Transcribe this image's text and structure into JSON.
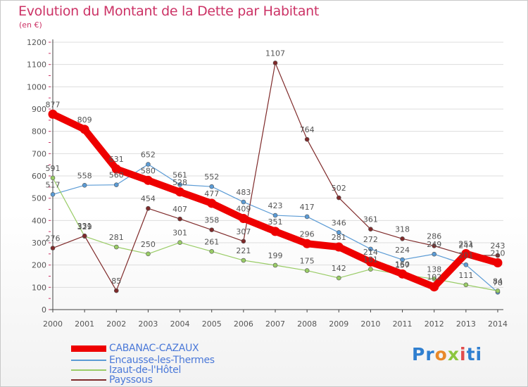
{
  "title": "Evolution du Montant de la Dette par Habitant",
  "subtitle": "(en €)",
  "logo": {
    "text": "Proxiti"
  },
  "colors": {
    "title": "#cc3366",
    "grid": "#dddddd",
    "axis": "#444444",
    "label": "#555555",
    "legend_text": "#4a78d8"
  },
  "chart_data": {
    "type": "line",
    "title": "Evolution du Montant de la Dette par Habitant",
    "subtitle": "(en €)",
    "x": [
      "2000",
      "2001",
      "2002",
      "2003",
      "2004",
      "2005",
      "2006",
      "2007",
      "2008",
      "2009",
      "2010",
      "2011",
      "2012",
      "2013",
      "2014"
    ],
    "ylim": [
      0,
      1200
    ],
    "yticks": [
      0,
      100,
      200,
      300,
      400,
      500,
      600,
      700,
      800,
      900,
      1000,
      1100,
      1200
    ],
    "grid": "horizontal",
    "legend_position": "bottom-left",
    "series": [
      {
        "name": "CABANAC-CAZAUX",
        "color": "#ee0000",
        "values": [
          877,
          809,
          631,
          580,
          528,
          477,
          409,
          351,
          296,
          281,
          214,
          160,
          102,
          251,
          210
        ],
        "labels": [
          "877",
          "809",
          "631",
          "580",
          "528",
          "477",
          "409",
          "351",
          "296",
          "281",
          "214",
          "160",
          "102",
          "251",
          "210"
        ]
      },
      {
        "name": "Encausse-les-Thermes",
        "color": "#5b9bd5",
        "values": [
          517,
          558,
          560,
          652,
          561,
          552,
          483,
          423,
          417,
          346,
          272,
          224,
          249,
          201,
          78
        ],
        "labels": [
          "517",
          "558",
          "560",
          "652",
          "561",
          "552",
          "483",
          "423",
          "417",
          "346",
          "272",
          "224",
          "249",
          "201",
          "78"
        ]
      },
      {
        "name": "Izaut-de-l'Hôtel",
        "color": "#99cc66",
        "values": [
          591,
          329,
          281,
          250,
          301,
          261,
          221,
          199,
          175,
          142,
          181,
          157,
          138,
          111,
          84
        ],
        "labels": [
          "591",
          "329",
          "281",
          "250",
          "301",
          "261",
          "221",
          "199",
          "175",
          "142",
          "181",
          "157",
          "138",
          "111",
          "84"
        ]
      },
      {
        "name": "Payssous",
        "color": "#7f2a2a",
        "values": [
          276,
          331,
          85,
          454,
          407,
          358,
          307,
          1107,
          764,
          502,
          361,
          318,
          286,
          244,
          243
        ],
        "labels": [
          "276",
          "331",
          "85",
          "454",
          "407",
          "358",
          "307",
          "1107",
          "764",
          "502",
          "361",
          "318",
          "286",
          "244",
          "243"
        ]
      }
    ]
  }
}
